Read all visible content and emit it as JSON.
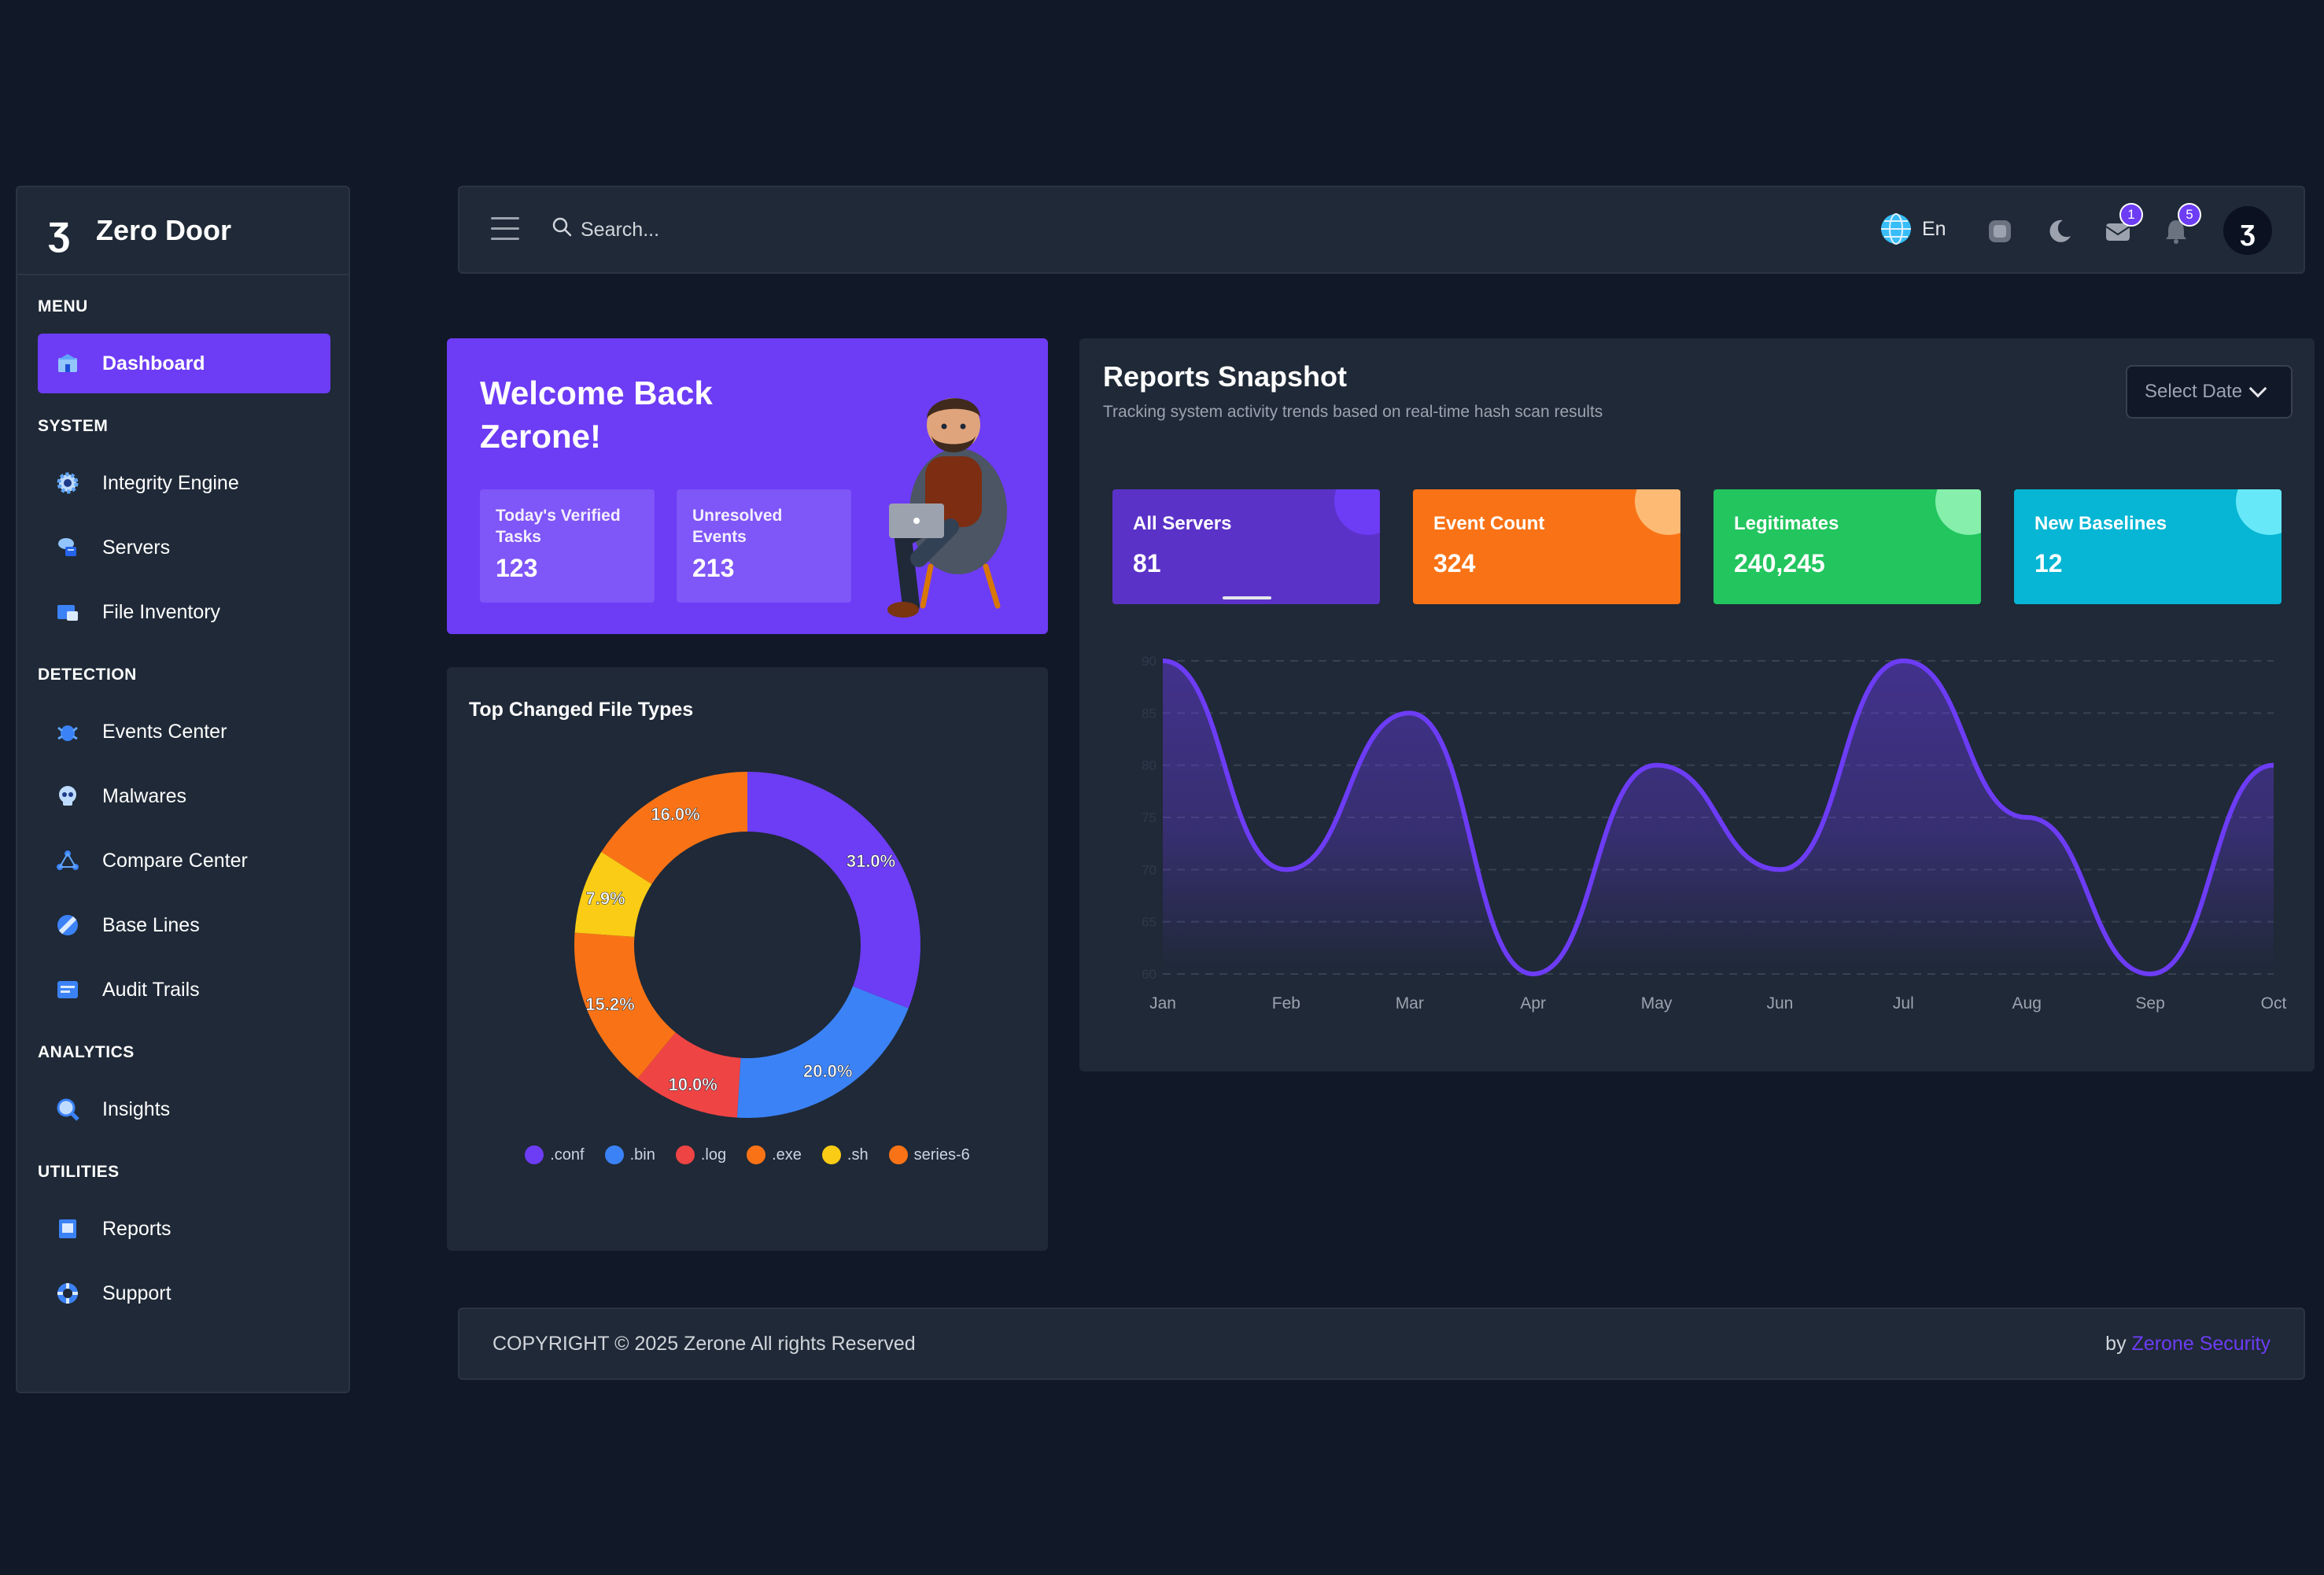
{
  "brand": {
    "name": "Zero Door",
    "logo_glyph": "ʒ"
  },
  "sidebar": {
    "sections": [
      "MENU",
      "SYSTEM",
      "DETECTION",
      "ANALYTICS",
      "UTILITIES"
    ],
    "items": [
      {
        "label": "Dashboard",
        "icon": "dashboard-icon",
        "active": true
      },
      {
        "label": "Integrity Engine",
        "icon": "gear-icon"
      },
      {
        "label": "Servers",
        "icon": "server-icon"
      },
      {
        "label": "File Inventory",
        "icon": "folder-icon"
      },
      {
        "label": "Events Center",
        "icon": "bug-icon"
      },
      {
        "label": "Malwares",
        "icon": "skull-icon"
      },
      {
        "label": "Compare Center",
        "icon": "compare-icon"
      },
      {
        "label": "Base Lines",
        "icon": "baseline-icon"
      },
      {
        "label": "Audit Trails",
        "icon": "audit-icon"
      },
      {
        "label": "Insights",
        "icon": "insights-icon"
      },
      {
        "label": "Reports",
        "icon": "reports-icon"
      },
      {
        "label": "Support",
        "icon": "support-icon"
      }
    ]
  },
  "topbar": {
    "search_placeholder": "Search...",
    "language": "En",
    "mail_badge": "1",
    "notification_badge": "5",
    "avatar_glyph": "ʒ"
  },
  "welcome": {
    "title_line1": "Welcome Back",
    "title_line2": "Zerone!",
    "stats": [
      {
        "label_line1": "Today's Verified",
        "label_line2": "Tasks",
        "value": "123"
      },
      {
        "label_line1": "Unresolved",
        "label_line2": "Events",
        "value": "213"
      }
    ]
  },
  "file_types": {
    "title": "Top Changed File Types",
    "legend": [
      ".conf",
      ".bin",
      ".log",
      ".exe",
      ".sh",
      "series-6"
    ]
  },
  "reports": {
    "title": "Reports Snapshot",
    "subtitle": "Tracking system activity trends based on real-time hash scan results",
    "select_label": "Select Date",
    "kpis": [
      {
        "label": "All Servers",
        "value": "81",
        "color": "#5b32c8",
        "bubble": "#6d3cf5"
      },
      {
        "label": "Event Count",
        "value": "324",
        "color": "#f97316",
        "bubble": "#fdba74"
      },
      {
        "label": "Legitimates",
        "value": "240,245",
        "color": "#22c55e",
        "bubble": "#86efac"
      },
      {
        "label": "New Baselines",
        "value": "12",
        "color": "#06b6d4",
        "bubble": "#67e8f9"
      }
    ]
  },
  "footer": {
    "copyright": "COPYRIGHT © 2025 Zerone All rights Reserved",
    "by": "by",
    "company": "Zerone Security"
  },
  "chart_data": [
    {
      "type": "pie",
      "title": "Top Changed File Types",
      "categories": [
        ".conf",
        ".bin",
        ".log",
        ".exe",
        ".sh",
        "series-6"
      ],
      "values": [
        31.0,
        20.0,
        10.0,
        15.2,
        7.9,
        16.0
      ],
      "colors": [
        "#6d3cf5",
        "#3b82f6",
        "#ef4444",
        "#f97316",
        "#facc15",
        "#f97316"
      ],
      "labels": [
        "31.0%",
        "20.0%",
        "10.0%",
        "15.2%",
        "7.9%",
        "16.0%"
      ],
      "donut": true,
      "legend": "bottom"
    },
    {
      "type": "area",
      "title": "",
      "categories": [
        "Jan",
        "Feb",
        "Mar",
        "Apr",
        "May",
        "Jun",
        "Jul",
        "Aug",
        "Sep",
        "Oct"
      ],
      "series": [
        {
          "values": [
            90,
            70,
            85,
            60,
            80,
            70,
            90,
            75,
            60,
            80
          ]
        }
      ],
      "ylim": [
        60,
        90
      ],
      "yticks": [
        60,
        65,
        70,
        75,
        80,
        85,
        90
      ],
      "grid": true,
      "color": "#6d3cf5"
    }
  ]
}
